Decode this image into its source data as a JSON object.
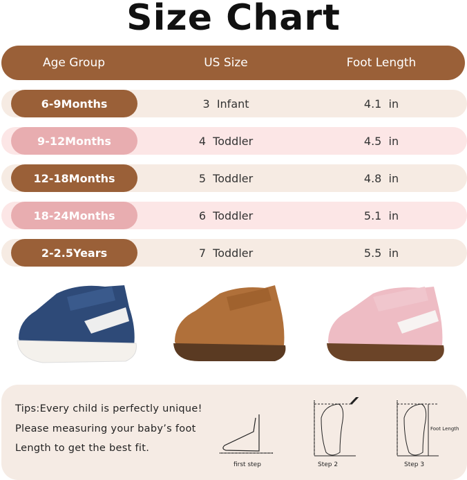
{
  "title": "Size Chart",
  "header": {
    "age": "Age Group",
    "us": "US Size",
    "foot": "Foot Length"
  },
  "rows": [
    {
      "age": "6-9Months",
      "us": "3  Infant",
      "foot": "4.1  in",
      "style": "brown"
    },
    {
      "age": "9-12Months",
      "us": "4  Toddler",
      "foot": "4.5  in",
      "style": "pink"
    },
    {
      "age": "12-18Months",
      "us": "5  Toddler",
      "foot": "4.8  in",
      "style": "brown"
    },
    {
      "age": "18-24Months",
      "us": "6  Toddler",
      "foot": "5.1  in",
      "style": "pink"
    },
    {
      "age": "2-2.5Years",
      "us": "7  Toddler",
      "foot": "5.5  in",
      "style": "brown"
    }
  ],
  "shoes": [
    {
      "color": "navy",
      "main": "#2e4a78"
    },
    {
      "color": "brown",
      "main": "#b0703a"
    },
    {
      "color": "pink",
      "main": "#eebcc4"
    }
  ],
  "tips": {
    "line1": "Tips:Every child is perfectly unique!",
    "line2": "Please measuring your baby’s foot",
    "line3": "Length to get the best fit."
  },
  "steps": {
    "s1": "first step",
    "s2": "Step 2",
    "s3": "Step 3",
    "foot_length": "Foot Length"
  },
  "colors": {
    "brown": "#9a6038",
    "pink": "#e8adb0",
    "row_brown": "#f6ebe3",
    "row_pink": "#fce6e6"
  }
}
